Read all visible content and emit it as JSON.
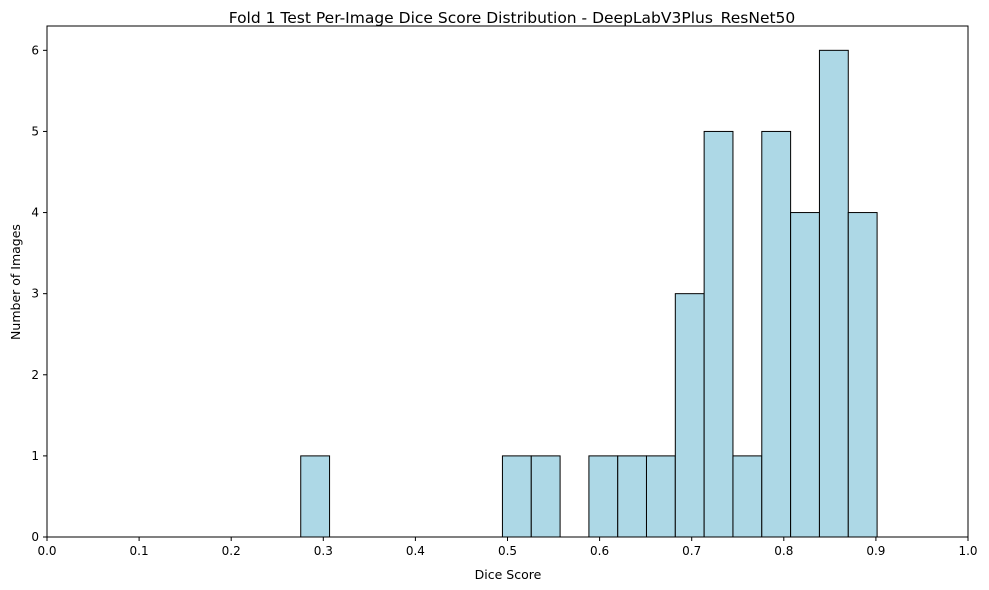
{
  "chart_data": {
    "type": "bar",
    "title": "Fold 1 Test Per-Image Dice Score Distribution - DeepLabV3Plus_ResNet50",
    "xlabel": "Dice Score",
    "ylabel": "Number of Images",
    "xlim": [
      0.0,
      1.0
    ],
    "ylim": [
      0,
      6.3
    ],
    "xticks": [
      "0.0",
      "0.1",
      "0.2",
      "0.3",
      "0.4",
      "0.5",
      "0.6",
      "0.7",
      "0.8",
      "0.9",
      "1.0"
    ],
    "yticks": [
      "0",
      "1",
      "2",
      "3",
      "4",
      "5",
      "6"
    ],
    "bin_edges": [
      0.2755,
      0.3068,
      0.3381,
      0.3693,
      0.4006,
      0.4319,
      0.4632,
      0.4945,
      0.5258,
      0.5571,
      0.5884,
      0.6197,
      0.6509,
      0.6822,
      0.7135,
      0.7448,
      0.7761,
      0.8074,
      0.8387,
      0.87,
      0.9013
    ],
    "values": [
      1,
      0,
      0,
      0,
      0,
      0,
      0,
      1,
      1,
      0,
      1,
      1,
      1,
      3,
      5,
      1,
      5,
      4,
      6,
      4
    ],
    "bar_color": "#add8e6",
    "edge_color": "#000000",
    "grid": false,
    "legend": "none"
  }
}
